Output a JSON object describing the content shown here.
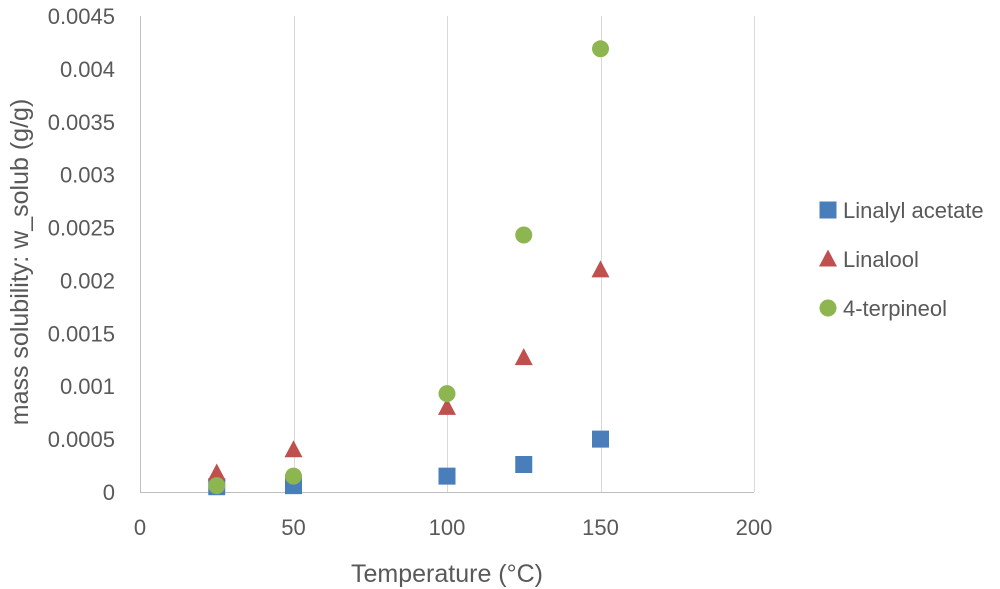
{
  "chart_data": {
    "type": "scatter",
    "title": "",
    "xlabel": "Temperature (°C)",
    "ylabel": "mass solubility: w_solub (g/g)",
    "xlim": [
      0,
      200
    ],
    "ylim": [
      0,
      0.0045
    ],
    "x_ticks": [
      0,
      50,
      100,
      150,
      200
    ],
    "x_tick_labels": [
      "0",
      "50",
      "100",
      "150",
      "200"
    ],
    "y_ticks": [
      0,
      0.0005,
      0.001,
      0.0015,
      0.002,
      0.0025,
      0.003,
      0.0035,
      0.004,
      0.0045
    ],
    "y_tick_labels": [
      "0",
      "0.0005",
      "0.001",
      "0.0015",
      "0.002",
      "0.0025",
      "0.003",
      "0.0035",
      "0.004",
      "0.0045"
    ],
    "grid": "vertical",
    "legend_position": "right",
    "series": [
      {
        "name": "Linalyl acetate",
        "marker": "square",
        "color": "#4a7ebb",
        "x": [
          25,
          50,
          100,
          125,
          150
        ],
        "y": [
          5e-05,
          6e-05,
          0.00015,
          0.00026,
          0.0005
        ]
      },
      {
        "name": "Linalool",
        "marker": "triangle",
        "color": "#c0504d",
        "x": [
          25,
          50,
          100,
          125,
          150
        ],
        "y": [
          0.00018,
          0.0004,
          0.0008,
          0.00127,
          0.0021
        ]
      },
      {
        "name": "4-terpineol",
        "marker": "circle",
        "color": "#8db650",
        "x": [
          25,
          50,
          100,
          125,
          150
        ],
        "y": [
          6e-05,
          0.00015,
          0.00093,
          0.00243,
          0.00419
        ]
      }
    ]
  }
}
